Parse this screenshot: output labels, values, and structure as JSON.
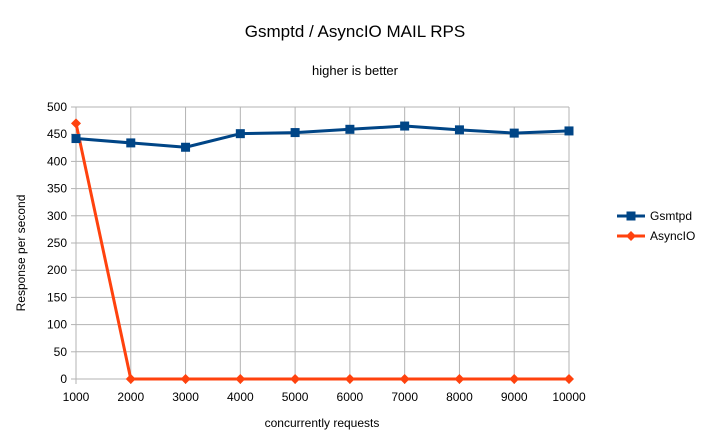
{
  "chart_data": {
    "type": "line",
    "title": "Gsmptd / AsyncIO MAIL RPS",
    "subtitle": "higher is better",
    "xlabel": "concurrently requests",
    "ylabel": "Response per second",
    "x": [
      1000,
      2000,
      3000,
      4000,
      5000,
      6000,
      7000,
      8000,
      9000,
      10000
    ],
    "ylim": [
      0,
      500
    ],
    "yticks": [
      0,
      50,
      100,
      150,
      200,
      250,
      300,
      350,
      400,
      450,
      500
    ],
    "grid": true,
    "legend": "right",
    "series": [
      {
        "name": "Gsmtpd",
        "color": "#004586",
        "marker": "square",
        "values": [
          442,
          434,
          426,
          451,
          453,
          459,
          465,
          458,
          452,
          456
        ]
      },
      {
        "name": "AsyncIO",
        "color": "#ff420e",
        "marker": "diamond",
        "values": [
          470,
          0,
          0,
          0,
          0,
          0,
          0,
          0,
          0,
          0
        ]
      }
    ]
  }
}
